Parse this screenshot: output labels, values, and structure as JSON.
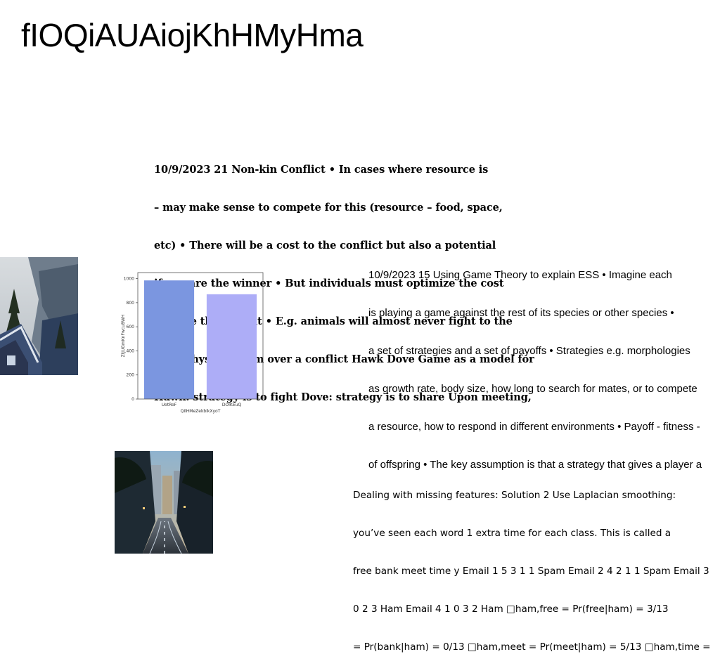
{
  "page": {
    "title": "fIOQiAUAiojKhHMyHma"
  },
  "blocks": [
    {
      "lines": [
        "10/9/2023 21 Non-kin Conflict • In cases where resource is",
        "– may make sense to compete for this (resource – food, space,",
        "etc) • There will be a cost to the conflict but also a potential",
        "if you are the winner • But individuals must optimize the cost",
        "relative the benefit • E.g. animals will almost never fight to the",
        "or to physical harm over a conflict Hawk Dove Game as a model for",
        "Hawk: strategy is to fight Dove: strategy is to share Upon meeting,"
      ]
    },
    {
      "lines": [
        "10/9/2023 15 Using Game Theory to explain ESS • Imagine each",
        "is playing a game against the rest of its species or other species •",
        "a set of strategies and a set of payoffs • Strategies e.g. morphologies",
        "as growth rate, body size, how long to search for mates, or to compete",
        "a resource, how to respond in different environments • Payoff - fitness -",
        "of offspring • The key assumption is that a strategy that gives a player a"
      ]
    },
    {
      "lines": [
        "Dealing with missing features: Solution 2 Use Laplacian smoothing:",
        "you’ve seen each word 1 extra time for each class. This is called a",
        "free bank meet time y Email 1 5 3 1 1 Spam Email 2 4 2 1 1 Spam Email 3",
        "0 2 3 Ham Email 4 1 0 3 2 Ham □ham,free = Pr(free|ham) = 3/13",
        "= Pr(bank|ham) = 0/13 □ham,meet = Pr(meet|ham) = 5/13 □ham,time ="
      ]
    }
  ],
  "images": [
    {
      "name": "mountain-cabin-photo"
    },
    {
      "name": "city-street-photo"
    }
  ],
  "chart_data": {
    "type": "bar",
    "categories": [
      "UotRoF",
      "DOIKEuQ"
    ],
    "values": [
      985,
      870
    ],
    "colors": [
      "#7b96e0",
      "#adadf7"
    ],
    "xlabel": "QIlHMeZekbikXyoT",
    "ylabel": "ZtJUGmKnFwcuBWH",
    "ylim": [
      0,
      1050
    ],
    "yticks": [
      0,
      200,
      400,
      600,
      800,
      1000
    ],
    "grid": false
  }
}
